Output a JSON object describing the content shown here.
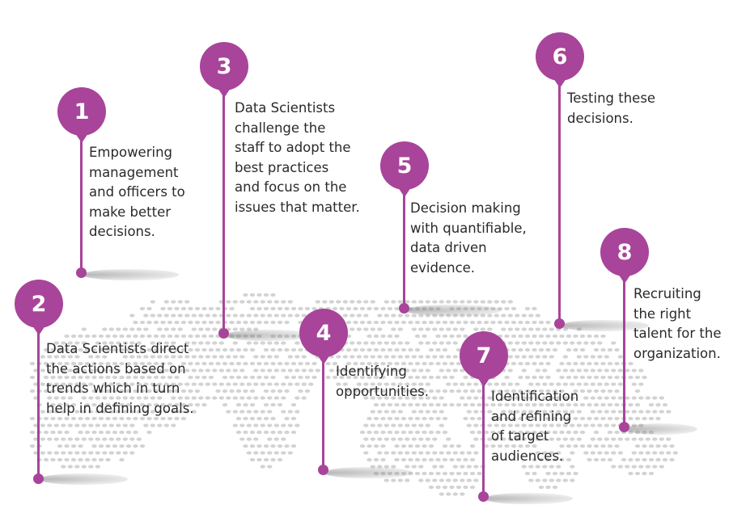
{
  "colors": {
    "pin": "#a8449a",
    "map_dot": "#d3d3d3",
    "text": "#2a2a2a"
  },
  "steps": [
    {
      "number": "1",
      "text": "Empowering\nmanagement\nand officers to\nmake better\ndecisions."
    },
    {
      "number": "2",
      "text": "Data Scientists direct\nthe actions based on\ntrends which in turn\nhelp in defining goals."
    },
    {
      "number": "3",
      "text": "Data Scientists\nchallenge the\nstaff to adopt the\nbest practices\nand focus on the\nissues that matter."
    },
    {
      "number": "4",
      "text": "Identifying\nopportunities."
    },
    {
      "number": "5",
      "text": "Decision making\nwith quantifiable,\ndata driven\nevidence."
    },
    {
      "number": "6",
      "text": "Testing these\ndecisions."
    },
    {
      "number": "7",
      "text": "Identification\nand refining\nof target\naudiences."
    },
    {
      "number": "8",
      "text": "Recruiting\nthe right\ntalent for the\norganization."
    }
  ]
}
